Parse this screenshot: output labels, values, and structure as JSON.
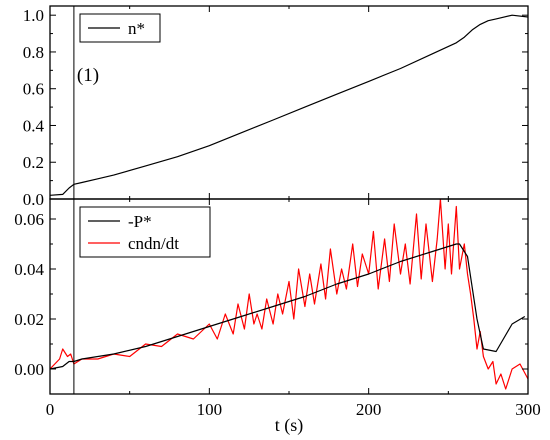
{
  "chart_data": [
    {
      "type": "line",
      "panel": "top",
      "xlim": [
        0,
        300
      ],
      "ylim": [
        0,
        1.05
      ],
      "yticks": [
        "0.0",
        "0.2",
        "0.4",
        "0.6",
        "0.8",
        "1.0"
      ],
      "xlabel": "",
      "ylabel": "",
      "legend": {
        "placement": "top-left",
        "entries": [
          "n*"
        ]
      },
      "annotations": [
        {
          "text": "(1)",
          "x": 15
        }
      ],
      "vline_x": 15,
      "grid": false,
      "series": [
        {
          "name": "n*",
          "color": "#000000",
          "x": [
            0,
            8,
            12,
            15,
            20,
            30,
            40,
            60,
            80,
            100,
            120,
            140,
            160,
            180,
            200,
            220,
            240,
            255,
            260,
            265,
            270,
            275,
            280,
            290,
            300
          ],
          "y": [
            0.02,
            0.025,
            0.06,
            0.08,
            0.09,
            0.11,
            0.13,
            0.18,
            0.23,
            0.29,
            0.36,
            0.43,
            0.5,
            0.57,
            0.64,
            0.71,
            0.79,
            0.85,
            0.88,
            0.92,
            0.95,
            0.97,
            0.98,
            1.0,
            0.99
          ]
        }
      ]
    },
    {
      "type": "line",
      "panel": "bottom",
      "xlim": [
        0,
        300
      ],
      "ylim": [
        -0.01,
        0.068
      ],
      "xticks": [
        "0",
        "100",
        "200",
        "300"
      ],
      "xtick_values": [
        0,
        100,
        200,
        300
      ],
      "yticks": [
        "0.00",
        "0.02",
        "0.04",
        "0.06"
      ],
      "ytick_values": [
        0,
        0.02,
        0.04,
        0.06
      ],
      "xlabel": "t (s)",
      "ylabel": "",
      "legend": {
        "placement": "top-left",
        "entries": [
          "-P*",
          "cndn/dt"
        ]
      },
      "vline_x": 15,
      "grid": false,
      "series": [
        {
          "name": "-P*",
          "color": "#000000",
          "x": [
            0,
            8,
            12,
            15,
            20,
            40,
            60,
            80,
            100,
            120,
            140,
            160,
            180,
            200,
            220,
            240,
            255,
            257,
            262,
            268,
            272,
            280,
            290,
            298
          ],
          "y": [
            0.0,
            0.001,
            0.003,
            0.003,
            0.004,
            0.006,
            0.009,
            0.013,
            0.017,
            0.021,
            0.025,
            0.029,
            0.034,
            0.038,
            0.043,
            0.047,
            0.05,
            0.05,
            0.045,
            0.02,
            0.008,
            0.007,
            0.018,
            0.021
          ]
        },
        {
          "name": "cndn/dt",
          "color": "#ff0000",
          "x": [
            0,
            6,
            8,
            11,
            13,
            15,
            20,
            30,
            40,
            50,
            60,
            70,
            80,
            90,
            100,
            105,
            110,
            115,
            118,
            122,
            125,
            128,
            130,
            133,
            136,
            140,
            143,
            146,
            150,
            153,
            156,
            160,
            163,
            166,
            170,
            173,
            176,
            180,
            183,
            186,
            190,
            193,
            196,
            200,
            203,
            206,
            210,
            213,
            216,
            220,
            223,
            226,
            230,
            233,
            236,
            240,
            243,
            245,
            248,
            250,
            252,
            255,
            257,
            260,
            262,
            264,
            266,
            268,
            270,
            272,
            275,
            278,
            280,
            283,
            286,
            290,
            295,
            300
          ],
          "y": [
            0.0,
            0.004,
            0.008,
            0.005,
            0.006,
            0.002,
            0.004,
            0.004,
            0.006,
            0.005,
            0.01,
            0.009,
            0.014,
            0.012,
            0.018,
            0.012,
            0.022,
            0.014,
            0.026,
            0.016,
            0.03,
            0.018,
            0.022,
            0.016,
            0.028,
            0.018,
            0.03,
            0.022,
            0.035,
            0.02,
            0.04,
            0.025,
            0.038,
            0.026,
            0.042,
            0.028,
            0.048,
            0.03,
            0.04,
            0.032,
            0.05,
            0.033,
            0.046,
            0.038,
            0.055,
            0.032,
            0.052,
            0.035,
            0.058,
            0.038,
            0.05,
            0.034,
            0.062,
            0.036,
            0.058,
            0.035,
            0.052,
            0.068,
            0.04,
            0.058,
            0.038,
            0.065,
            0.04,
            0.05,
            0.038,
            0.03,
            0.02,
            0.008,
            0.015,
            0.005,
            0.0,
            0.003,
            -0.006,
            -0.002,
            -0.008,
            0.0,
            0.002,
            -0.004
          ]
        }
      ]
    }
  ]
}
